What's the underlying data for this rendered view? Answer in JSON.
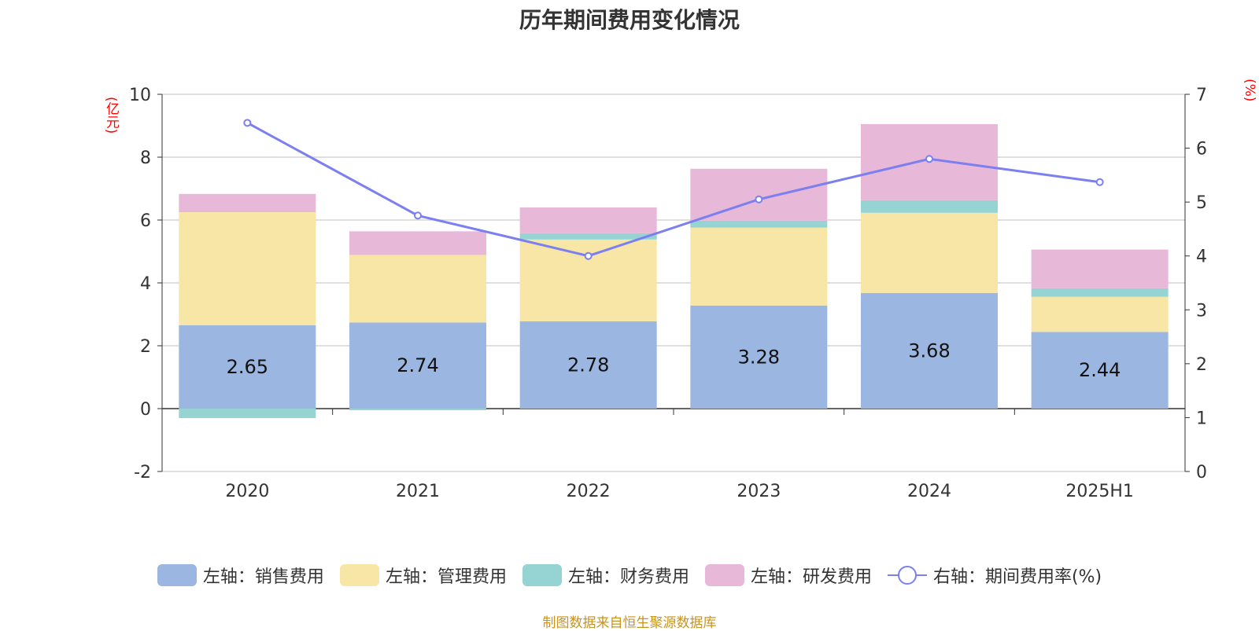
{
  "title": "历年期间费用变化情况",
  "source_note": "制图数据来自恒生聚源数据库",
  "chart_data": {
    "type": "bar",
    "stacked": true,
    "categories": [
      "2020",
      "2021",
      "2022",
      "2023",
      "2024",
      "2025H1"
    ],
    "series": [
      {
        "name": "左轴：销售费用",
        "axis": "left",
        "color": "#9bb6e0",
        "values": [
          2.65,
          2.74,
          2.78,
          3.28,
          3.68,
          2.44
        ],
        "labels": [
          "2.65",
          "2.74",
          "2.78",
          "3.28",
          "3.68",
          "2.44"
        ]
      },
      {
        "name": "左轴：管理费用",
        "axis": "left",
        "color": "#f7e6a6",
        "values": [
          3.6,
          2.15,
          2.6,
          2.48,
          2.55,
          1.12
        ]
      },
      {
        "name": "左轴：财务费用",
        "axis": "left",
        "color": "#96d3d3",
        "values": [
          -0.3,
          -0.05,
          0.2,
          0.22,
          0.4,
          0.27
        ]
      },
      {
        "name": "左轴：研发费用",
        "axis": "left",
        "color": "#e8b8d8",
        "values": [
          0.58,
          0.75,
          0.82,
          1.65,
          2.42,
          1.23
        ]
      },
      {
        "name": "右轴：期间费用率(%)",
        "axis": "right",
        "type": "line",
        "color": "#7b7ff0",
        "values": [
          6.47,
          4.75,
          4.0,
          5.05,
          5.8,
          5.37
        ]
      }
    ],
    "left_axis": {
      "unit": "(亿元)",
      "min": -2,
      "max": 10,
      "ticks": [
        -2,
        0,
        2,
        4,
        6,
        8,
        10
      ]
    },
    "right_axis": {
      "unit": "(%)",
      "min": 0,
      "max": 7,
      "ticks": [
        0,
        1,
        2,
        3,
        4,
        5,
        6,
        7
      ]
    },
    "grid": true,
    "legend_position": "bottom"
  }
}
